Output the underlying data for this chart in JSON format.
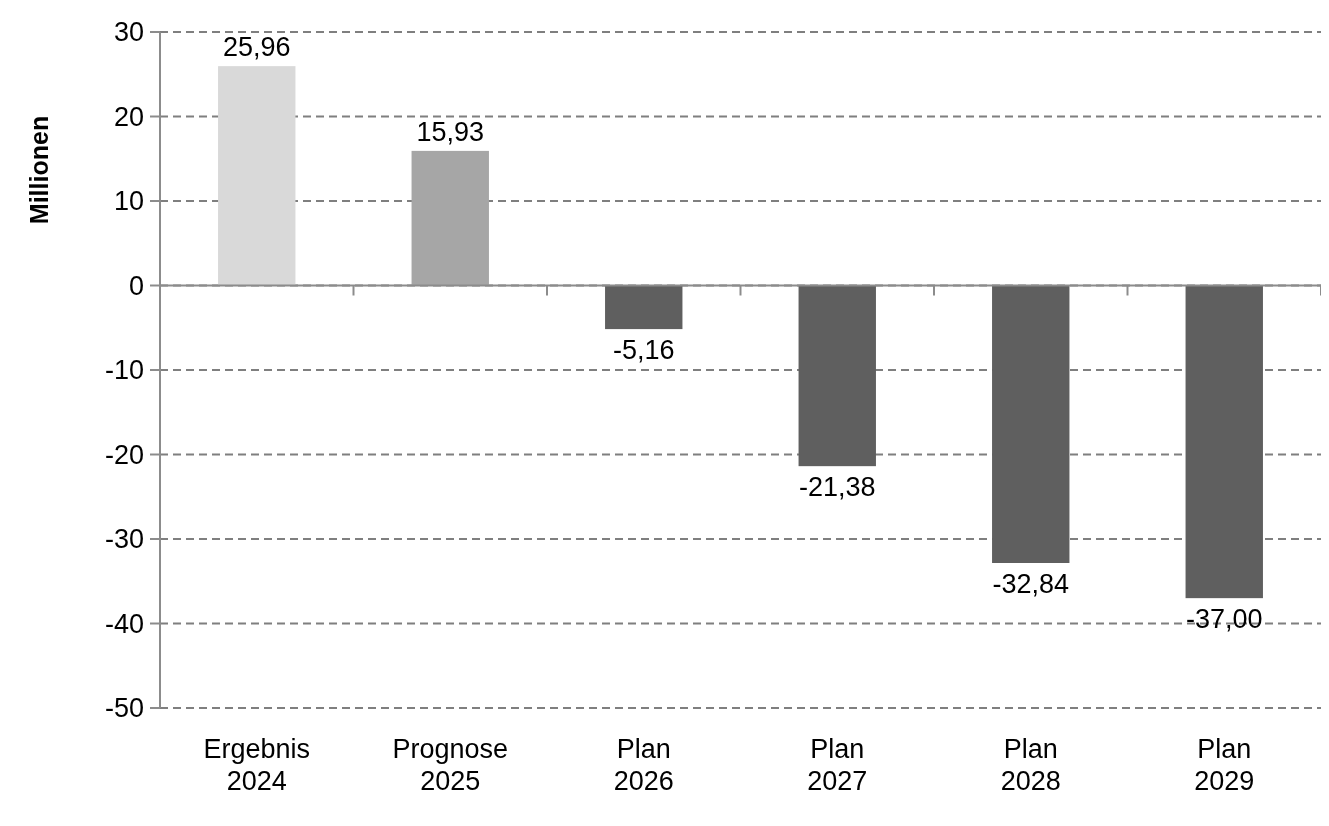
{
  "chart_data": {
    "type": "bar",
    "ylabel": "Millionen",
    "categories": [
      "Ergebnis 2024",
      "Prognose 2025",
      "Plan 2026",
      "Plan 2027",
      "Plan 2028",
      "Plan 2029"
    ],
    "values": [
      25.96,
      15.93,
      -5.16,
      -21.38,
      -32.84,
      -37.0
    ],
    "colors": [
      "#d9d9d9",
      "#a6a6a6",
      "#5f5f5f",
      "#5f5f5f",
      "#5f5f5f",
      "#5f5f5f"
    ],
    "value_labels": [
      "25,96",
      "15,93",
      "-5,16",
      "-21,38",
      "-32,84",
      "-37,00"
    ],
    "ylim": [
      -50,
      30
    ],
    "yticks": [
      -50,
      -40,
      -30,
      -20,
      -10,
      0,
      10,
      20,
      30
    ],
    "grid": "y"
  }
}
